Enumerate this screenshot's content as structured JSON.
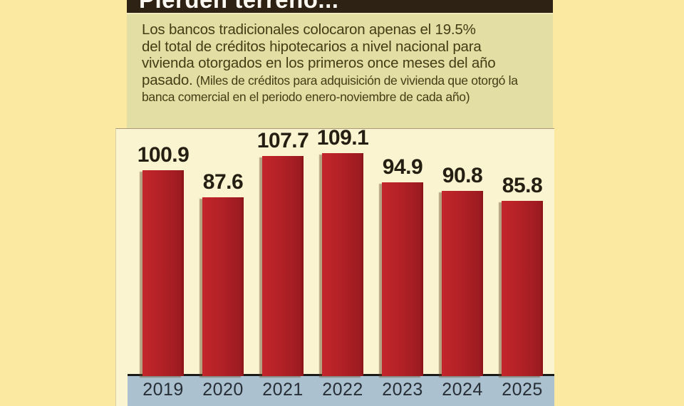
{
  "header": {
    "title": "Pierden terreno..."
  },
  "intro": {
    "line1": "Los bancos tradicionales colocaron apenas el 19.5%",
    "line2": "del total de créditos hipotecarios a nivel nacional para",
    "line3": "vivienda otorgados en los primeros once meses del año",
    "line4_main": "pasado.",
    "line4_note": " (Miles de créditos para adquisición de vivienda que otorgó la",
    "line5_note": "banca comercial en el periodo enero-noviembre de cada año)"
  },
  "chart_data": {
    "type": "bar",
    "title": "Pierden terreno...",
    "categories": [
      "2019",
      "2020",
      "2021",
      "2022",
      "2023",
      "2024",
      "2025"
    ],
    "values": [
      100.9,
      87.6,
      107.7,
      109.1,
      94.9,
      90.8,
      85.8
    ],
    "value_label_decimals": 1,
    "unit": "miles de créditos hipotecarios",
    "bar_color": "#B22126",
    "axis_band_color": "#ACC1D0",
    "value_labels_shown": true,
    "gridlines": false,
    "legend": "none",
    "ylim": [
      0,
      120
    ]
  },
  "colors": {
    "page_background": "#FBE9A1",
    "title_bar_background": "#2E2215",
    "title_text": "#FBF9F2",
    "intro_panel_background": "#E3DFA4",
    "intro_text": "#453C15",
    "chart_panel_background": "#FAF4D0",
    "bar_red": "#B22126",
    "axis_band_blue": "#ACC1D0",
    "value_label_text": "#241F12",
    "year_label_text": "#272E35"
  }
}
